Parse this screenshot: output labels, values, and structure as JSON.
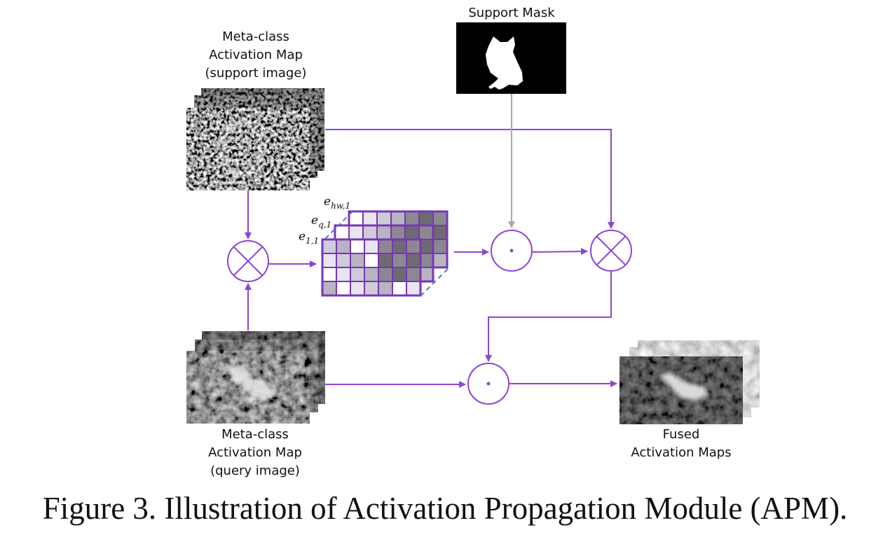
{
  "labels": {
    "support_mask": "Support Mask",
    "support_map": [
      "Meta-class",
      "Activation Map",
      "(support image)"
    ],
    "query_map": [
      "Meta-class",
      "Activation Map",
      "(query image)"
    ],
    "fused": [
      "Fused",
      "Activation Maps"
    ],
    "embeddings": {
      "e11": {
        "base": "e",
        "sub": "1,1"
      },
      "eq1": {
        "base": "e",
        "sub": "q,1"
      },
      "ehw1": {
        "base": "e",
        "sub": "hw,1"
      }
    }
  },
  "caption": "Figure 3. Illustration of Activation Propagation Module (APM).",
  "colors": {
    "arrow": "#8e44d6",
    "mask_arrow": "#a9a9a9",
    "dashed": "#4a7bc8",
    "grid_border": "#7a35b8"
  }
}
